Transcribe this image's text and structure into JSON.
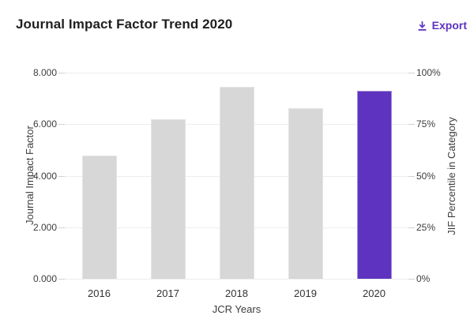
{
  "header": {
    "title": "Journal Impact Factor Trend 2020",
    "export_label": "Export"
  },
  "colors": {
    "accent": "#5e33bf",
    "bar_default": "#d7d7d7",
    "bar_default_border": "#e4e4e4",
    "bar_highlight": "#5e33bf",
    "bar_highlight_border": "#a38cd9",
    "gridline": "#ededed",
    "tick": "#d2d2d2"
  },
  "chart_data": {
    "type": "bar",
    "title": "Journal Impact Factor Trend 2020",
    "categories": [
      "2016",
      "2017",
      "2018",
      "2019",
      "2020"
    ],
    "values": [
      4.78,
      6.19,
      7.46,
      6.63,
      7.31
    ],
    "series_name": "Journal Impact Factor",
    "highlight_category": "2020",
    "xlabel": "JCR Years",
    "ylabel_left": "Journal Impact Factor",
    "ylabel_right": "JIF Percentile in Category",
    "y_left_ticks": [
      "8.000",
      "6.000",
      "4.000",
      "2.000",
      "0.000"
    ],
    "y_right_ticks": [
      "100%",
      "75%",
      "50%",
      "25%",
      "0%"
    ],
    "ylim_left": [
      0,
      8
    ],
    "ylim_right": [
      0,
      100
    ],
    "grid": true,
    "legend": "none"
  }
}
